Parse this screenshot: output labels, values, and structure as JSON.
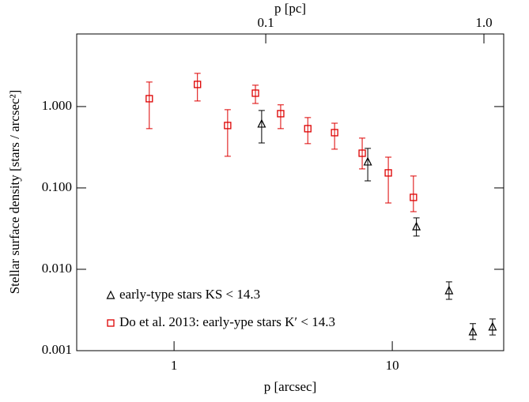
{
  "chart_data": {
    "type": "scatter",
    "xlabel": "p [arcsec]",
    "ylabel": "Stellar surface density  [stars / arcsec²]",
    "x2label": "p [pc]",
    "xscale": "log",
    "yscale": "log",
    "xlim": [
      0.358,
      32.4
    ],
    "ylim": [
      0.001,
      7.8
    ],
    "x2lim": [
      0.0136,
      1.232
    ],
    "xticks": [
      1,
      10
    ],
    "x2ticks": [
      0.1,
      {
        "value": 1,
        "label": "1.0"
      }
    ],
    "yticks": [
      {
        "value": 0.001,
        "label": "0.001"
      },
      {
        "value": 0.01,
        "label": "0.010"
      },
      {
        "value": 0.1,
        "label": "0.100"
      },
      {
        "value": 1,
        "label": "1.000"
      }
    ],
    "legend": "lower left",
    "series": [
      {
        "name": "early-type stars KS < 14.3",
        "color": "#000000",
        "marker": "triangle",
        "x": [
          2.52,
          7.72,
          12.9,
          18.2,
          23.4,
          28.8
        ],
        "values": [
          0.611,
          0.209,
          0.0334,
          0.00547,
          0.00171,
          0.00196
        ],
        "upper": [
          0.894,
          0.306,
          0.0428,
          0.007,
          0.00215,
          0.00245
        ],
        "lower": [
          0.357,
          0.122,
          0.0256,
          0.00428,
          0.00137,
          0.00156
        ]
      },
      {
        "name": "Do et al. 2013: early-ype stars K′ < 14.3",
        "color": "#dd0000",
        "marker": "square",
        "x": [
          0.77,
          1.28,
          1.76,
          2.36,
          3.08,
          4.1,
          5.44,
          7.28,
          9.59,
          12.5
        ],
        "values": [
          1.25,
          1.87,
          0.585,
          1.46,
          0.818,
          0.535,
          0.478,
          0.267,
          0.153,
          0.0765
        ],
        "upper": [
          2.0,
          2.56,
          0.915,
          1.83,
          1.05,
          0.731,
          0.625,
          0.409,
          0.239,
          0.14
        ],
        "lower": [
          0.535,
          1.17,
          0.245,
          1.09,
          0.535,
          0.35,
          0.299,
          0.171,
          0.0654,
          0.0511
        ]
      }
    ]
  }
}
